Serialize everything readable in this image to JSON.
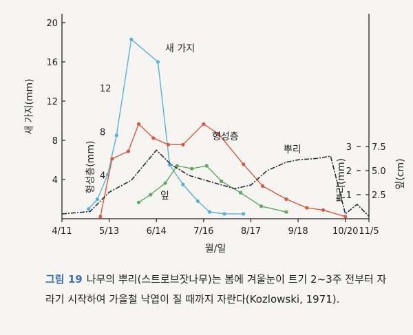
{
  "chart_data": {
    "type": "line",
    "x_ticks": [
      "4/11",
      "5/13",
      "6/14",
      "7/16",
      "8/17",
      "9/18",
      "10/20",
      "11/5"
    ],
    "xlabel": "월/일",
    "axes": {
      "shoot": {
        "label": "새 가지(mm)",
        "ticks": [
          "4",
          "8",
          "12",
          "16",
          "20"
        ],
        "range": [
          0,
          20
        ]
      },
      "cambium": {
        "label": "형성층(mm)",
        "ticks": [
          "4",
          "8",
          "12"
        ],
        "range": [
          0,
          16
        ]
      },
      "root": {
        "label": "뿌리(mm)",
        "ticks": [
          "1",
          "2",
          "3"
        ],
        "range": [
          0,
          4
        ]
      },
      "leaf": {
        "label": "잎(cm)",
        "ticks": [
          "2.5",
          "5.0",
          "7.5"
        ],
        "range": [
          0,
          10
        ]
      }
    },
    "series": [
      {
        "name": "새 가지",
        "axis": "shoot",
        "color": "#5aafd9",
        "markers": true,
        "x": [
          "4/29",
          "5/5",
          "5/12",
          "5/18",
          "5/28",
          "6/15",
          "6/23",
          "7/2",
          "7/12",
          "7/20",
          "7/30",
          "8/12"
        ],
        "y": [
          1,
          2,
          4.5,
          8.5,
          18.3,
          16,
          5.5,
          3.5,
          1.8,
          0.7,
          0.5,
          0.5
        ]
      },
      {
        "name": "형성층",
        "axis": "cambium",
        "color": "#d9593f",
        "markers": true,
        "x": [
          "5/7",
          "5/15",
          "5/26",
          "6/2",
          "6/12",
          "6/22",
          "7/2",
          "7/16",
          "7/26",
          "8/12",
          "8/25",
          "9/10",
          "9/24",
          "10/5",
          "10/20"
        ],
        "y": [
          0.2,
          5.5,
          6.2,
          8.7,
          7.4,
          6.8,
          6.8,
          8.7,
          7.8,
          5,
          3,
          1.8,
          1,
          0.8,
          0.2
        ]
      },
      {
        "name": "잎",
        "axis": "leaf",
        "color": "#5ca85c",
        "markers": true,
        "x": [
          "6/2",
          "6/10",
          "6/20",
          "6/28",
          "7/8",
          "7/18",
          "7/28",
          "8/10",
          "8/24",
          "9/10"
        ],
        "y": [
          1.7,
          2.5,
          3.7,
          5.5,
          5.2,
          5.5,
          3.9,
          2.7,
          1.3,
          0.7
        ]
      },
      {
        "name": "뿌리",
        "axis": "root",
        "color": "#2a2a3a",
        "dashed": true,
        "x": [
          "4/11",
          "4/30",
          "5/13",
          "5/28",
          "6/14",
          "6/24",
          "7/6",
          "7/20",
          "8/6",
          "8/17",
          "8/28",
          "9/10",
          "9/18",
          "9/30",
          "10/10",
          "10/20",
          "10/28",
          "11/5"
        ],
        "y": [
          0.2,
          0.3,
          1.1,
          1.6,
          2.85,
          2.25,
          1.8,
          1.55,
          1.25,
          1.4,
          2.0,
          2.35,
          2.45,
          2.5,
          2.6,
          0.2,
          0.6,
          0.1
        ]
      }
    ]
  },
  "caption": {
    "figure_label": "그림 19",
    "text": "나무의 뿌리(스트로브잣나무)는 봄에 겨울눈이 트기 2~3주 전부터 자라기 시작하여 가을철 낙엽이 질 때까지 자란다(Kozlowski, 1971)."
  }
}
